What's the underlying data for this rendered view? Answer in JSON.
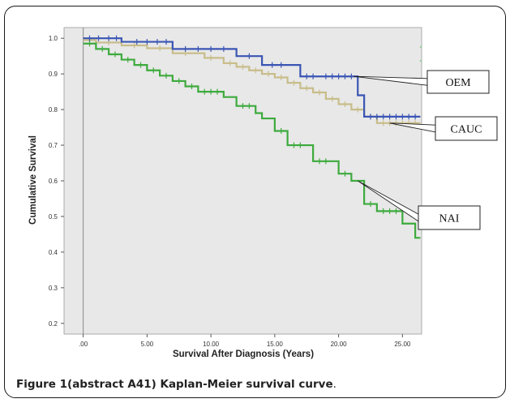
{
  "caption": {
    "label": "Figure 1(abstract A41) Kaplan-Meier survival curve",
    "tail": "."
  },
  "chart_data": {
    "type": "line",
    "step": true,
    "title": "",
    "xlabel": "Survival After Diagnosis (Years)",
    "ylabel": "Cumulative Survival",
    "xlim": [
      -1.5,
      26.5
    ],
    "ylim": [
      0.17,
      1.03
    ],
    "x_ticks": [
      0,
      5,
      10,
      15,
      20,
      25
    ],
    "x_tick_labels": [
      ".00",
      "5.00",
      "10.00",
      "15.00",
      "20.00",
      "25.00"
    ],
    "y_ticks": [
      0.2,
      0.3,
      0.4,
      0.5,
      0.6,
      0.7,
      0.8,
      0.9,
      1.0
    ],
    "y_tick_labels": [
      "0.2",
      "0.3",
      "0.4",
      "0.5",
      "0.6",
      "0.7",
      "0.8",
      "0.9",
      "1.0"
    ],
    "grid": false,
    "background": "#e8e8e8",
    "series": [
      {
        "name": "OEM",
        "color": "#3a55b4",
        "x": [
          0,
          3,
          7,
          12,
          14,
          17,
          21.5,
          22
        ],
        "y": [
          1.0,
          0.99,
          0.97,
          0.95,
          0.925,
          0.893,
          0.84,
          0.78
        ],
        "end_x": 26.4,
        "censor_x": [
          0.5,
          1.2,
          2.0,
          2.6,
          4.2,
          5.0,
          5.8,
          6.5,
          8.0,
          9.0,
          10.0,
          11.0,
          13.0,
          14.8,
          15.5,
          17.5,
          18.0,
          19.0,
          19.5,
          20.0,
          20.5,
          21.0,
          22.5,
          23.0,
          23.5,
          24.0,
          24.5,
          25.0,
          25.5,
          26.0
        ]
      },
      {
        "name": "CAUC",
        "color": "#c8bd8a",
        "x": [
          0,
          1,
          3,
          5,
          7,
          9.5,
          11,
          12,
          13,
          14,
          15,
          16,
          17,
          18,
          19,
          20,
          21,
          22,
          23
        ],
        "y": [
          0.995,
          0.988,
          0.98,
          0.972,
          0.958,
          0.945,
          0.93,
          0.92,
          0.91,
          0.9,
          0.89,
          0.875,
          0.86,
          0.848,
          0.83,
          0.815,
          0.8,
          0.78,
          0.762
        ],
        "end_x": 26.4,
        "censor_x": [
          0.5,
          2.0,
          4.0,
          6.0,
          8.0,
          10.0,
          11.5,
          12.5,
          13.5,
          14.5,
          15.5,
          16.5,
          17.5,
          18.5,
          19.5,
          20.5,
          21.5,
          22.5,
          23.5,
          24.0,
          24.5,
          25.0,
          25.5,
          26.0
        ]
      },
      {
        "name": "NAI",
        "color": "#3daa3d",
        "x": [
          0,
          1,
          2,
          3,
          4,
          5,
          6,
          7,
          8,
          9,
          11,
          12,
          13.5,
          14,
          15,
          16,
          18,
          20,
          21,
          22,
          23,
          25,
          26
        ],
        "y": [
          0.985,
          0.97,
          0.955,
          0.94,
          0.925,
          0.91,
          0.895,
          0.88,
          0.865,
          0.85,
          0.835,
          0.81,
          0.79,
          0.775,
          0.74,
          0.7,
          0.655,
          0.62,
          0.6,
          0.535,
          0.515,
          0.48,
          0.44
        ],
        "end_x": 26.4,
        "censor_x": [
          0.5,
          1.5,
          2.5,
          3.5,
          4.5,
          5.5,
          6.5,
          7.5,
          8.5,
          9.5,
          10.0,
          10.5,
          12.5,
          13.0,
          15.5,
          16.5,
          17.0,
          18.5,
          19.0,
          20.5,
          22.5,
          23.5,
          24.0,
          24.5
        ]
      }
    ],
    "annotations": [
      {
        "text": "OEM",
        "series": "OEM"
      },
      {
        "text": "CAUC",
        "series": "CAUC"
      },
      {
        "text": "NAI",
        "series": "NAI"
      }
    ]
  }
}
